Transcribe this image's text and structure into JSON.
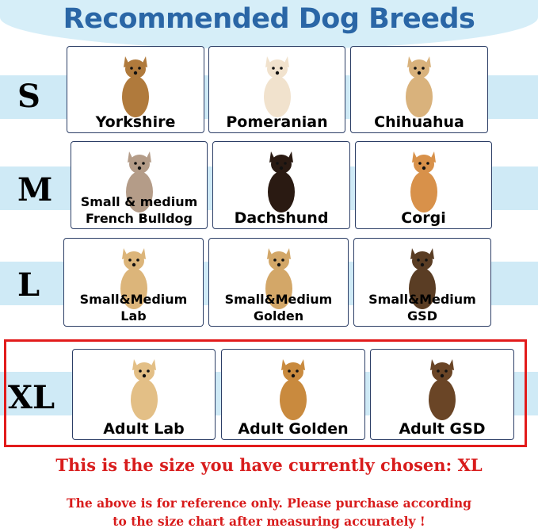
{
  "title": "Recommended Dog Breeds",
  "rows": [
    {
      "size": "S",
      "breeds": [
        {
          "name": "Yorkshire",
          "color": "#b07a3c"
        },
        {
          "name": "Pomeranian",
          "color": "#f1e2cd"
        },
        {
          "name": "Chihuahua",
          "color": "#d9b27c"
        }
      ]
    },
    {
      "size": "M",
      "breeds": [
        {
          "name": "Small & medium French Bulldog",
          "color": "#b49c88"
        },
        {
          "name": "Dachshund",
          "color": "#2a1a12"
        },
        {
          "name": "Corgi",
          "color": "#d8914a"
        }
      ]
    },
    {
      "size": "L",
      "breeds": [
        {
          "name": "Small&Medium Lab",
          "color": "#dcb57a"
        },
        {
          "name": "Small&Medium Golden",
          "color": "#d3a768"
        },
        {
          "name": "Small&Medium GSD",
          "color": "#5a3d24"
        }
      ]
    },
    {
      "size": "XL",
      "breeds": [
        {
          "name": "Adult Lab",
          "color": "#e3bf86"
        },
        {
          "name": "Adult Golden",
          "color": "#c98a3e"
        },
        {
          "name": "Adult GSD",
          "color": "#6a4526"
        }
      ]
    }
  ],
  "selected_size": "XL",
  "chosen_text": "This is the size you have currently chosen: XL",
  "note_line1": "The above is for reference only. Please purchase according",
  "note_line2": "to the size chart after measuring accurately !",
  "colors": {
    "title": "#2a66a6",
    "highlight": "#e21b1b",
    "band": "#cfeaf6"
  }
}
